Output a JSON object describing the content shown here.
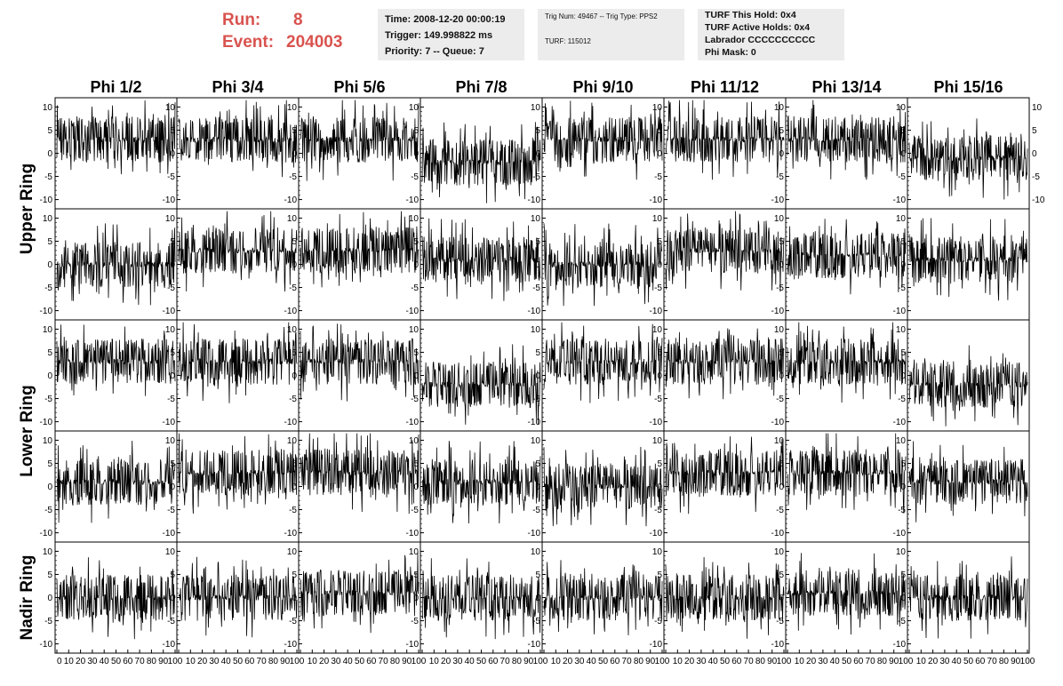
{
  "header": {
    "run_label": "Run:",
    "run_value": "8",
    "event_label": "Event:",
    "event_value": "204003",
    "time": "Time: 2008-12-20 00:00:19",
    "trigger": "Trigger: 149.998822 ms",
    "priority": "Priority: 7 -- Queue: 7",
    "trig_num": "Trig Num: 49467 -- Trig Type: PPS2",
    "turf": "TURF: 115012",
    "turf_this_hold": "TURF This Hold: 0x4",
    "turf_active_holds": "TURF Active Holds: 0x4",
    "labrador": "Labrador CCCCCCCCCC",
    "phi_mask": "Phi Mask: 0"
  },
  "colors": {
    "run_text": "#d9534f",
    "info_bg": "#ececec",
    "trace": "#000000"
  },
  "chart_data": {
    "type": "line",
    "columns": [
      "Phi 1/2",
      "Phi 3/4",
      "Phi 5/6",
      "Phi 7/8",
      "Phi 9/10",
      "Phi 11/12",
      "Phi 13/14",
      "Phi 15/16"
    ],
    "row_groups": [
      {
        "label": "Upper Ring",
        "rows": [
          0,
          1
        ]
      },
      {
        "label": "Lower Ring",
        "rows": [
          2,
          3
        ]
      },
      {
        "label": "Nadir Ring",
        "rows": [
          4
        ]
      }
    ],
    "xlim": [
      0,
      100
    ],
    "ylim": [
      -12,
      12
    ],
    "yticks": [
      "10",
      "5",
      "0",
      "-5",
      "-10"
    ],
    "yticks_right_row0": [
      "10",
      "5",
      "0",
      "-5",
      "-10"
    ],
    "xticks": [
      "0",
      "10",
      "20",
      "30",
      "40",
      "50",
      "60",
      "70",
      "80",
      "90",
      "100"
    ],
    "xtick_labels_bottom": "0 10 20 30 40 50 60 70 80 90100",
    "panel_baselines": [
      [
        3,
        3,
        3,
        -2,
        3,
        3,
        3,
        -1
      ],
      [
        0,
        3,
        3,
        1,
        0,
        3,
        2,
        1
      ],
      [
        3,
        3,
        3,
        -2,
        3,
        3,
        3,
        -2
      ],
      [
        1,
        3,
        3,
        1,
        0,
        3,
        3,
        1
      ],
      [
        0,
        0,
        1,
        0,
        0,
        0,
        1,
        0
      ]
    ],
    "panel_amplitude_note": "traces fluctuate roughly +/-4 around baseline; spikes to about +/-10",
    "grid": false
  }
}
